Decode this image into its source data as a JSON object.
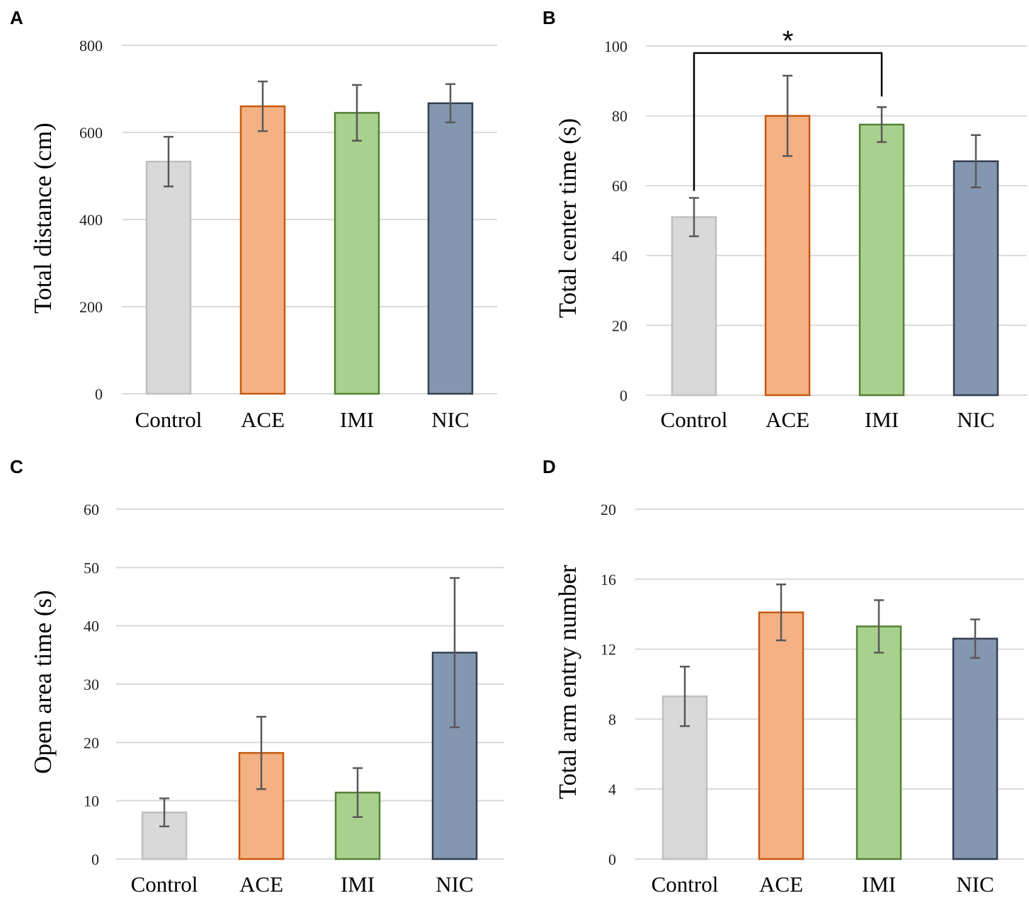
{
  "chart_data": [
    {
      "panel": "A",
      "type": "bar",
      "title": "",
      "xlabel": "",
      "ylabel": "Total distance (cm)",
      "ylim": [
        0,
        800
      ],
      "yticks": [
        0,
        200,
        400,
        600,
        800
      ],
      "grid": true,
      "categories": [
        "Control",
        "ACE",
        "IMI",
        "NIC"
      ],
      "values": [
        533,
        660,
        645,
        667
      ],
      "errors": [
        57,
        57,
        64,
        44
      ],
      "colors": [
        "#d9d9d9",
        "#f4b183",
        "#a9d18e",
        "#8497b0"
      ],
      "edge_colors": [
        "#bfbfbf",
        "#c55a11",
        "#538135",
        "#333f50"
      ],
      "significance": []
    },
    {
      "panel": "B",
      "type": "bar",
      "title": "",
      "xlabel": "",
      "ylabel": "Total center time (s)",
      "ylim": [
        0,
        100
      ],
      "yticks": [
        0,
        20,
        40,
        60,
        80,
        100
      ],
      "grid": true,
      "categories": [
        "Control",
        "ACE",
        "IMI",
        "NIC"
      ],
      "values": [
        51,
        80,
        77.5,
        67
      ],
      "errors": [
        5.5,
        11.5,
        5,
        7.5
      ],
      "colors": [
        "#d9d9d9",
        "#f4b183",
        "#a9d18e",
        "#8497b0"
      ],
      "edge_colors": [
        "#bfbfbf",
        "#c55a11",
        "#538135",
        "#333f50"
      ],
      "significance": [
        {
          "from": 0,
          "to": 2,
          "label": "*",
          "level": 98
        }
      ]
    },
    {
      "panel": "C",
      "type": "bar",
      "title": "",
      "xlabel": "",
      "ylabel": "Open area time (s)",
      "ylim": [
        0,
        60
      ],
      "yticks": [
        0,
        10,
        20,
        30,
        40,
        50,
        60
      ],
      "grid": true,
      "categories": [
        "Control",
        "ACE",
        "IMI",
        "NIC"
      ],
      "values": [
        8,
        18.2,
        11.4,
        35.4
      ],
      "errors": [
        2.4,
        6.2,
        4.2,
        12.8
      ],
      "colors": [
        "#d9d9d9",
        "#f4b183",
        "#a9d18e",
        "#8497b0"
      ],
      "edge_colors": [
        "#bfbfbf",
        "#c55a11",
        "#538135",
        "#333f50"
      ],
      "significance": []
    },
    {
      "panel": "D",
      "type": "bar",
      "title": "",
      "xlabel": "",
      "ylabel": "Total arm entry number",
      "ylim": [
        0,
        20
      ],
      "yticks": [
        0,
        4,
        8,
        12,
        16,
        20
      ],
      "grid": true,
      "categories": [
        "Control",
        "ACE",
        "IMI",
        "NIC"
      ],
      "values": [
        9.3,
        14.1,
        13.3,
        12.6
      ],
      "errors": [
        1.7,
        1.6,
        1.5,
        1.1
      ],
      "colors": [
        "#d9d9d9",
        "#f4b183",
        "#a9d18e",
        "#8497b0"
      ],
      "edge_colors": [
        "#bfbfbf",
        "#c55a11",
        "#538135",
        "#333f50"
      ],
      "significance": []
    }
  ]
}
